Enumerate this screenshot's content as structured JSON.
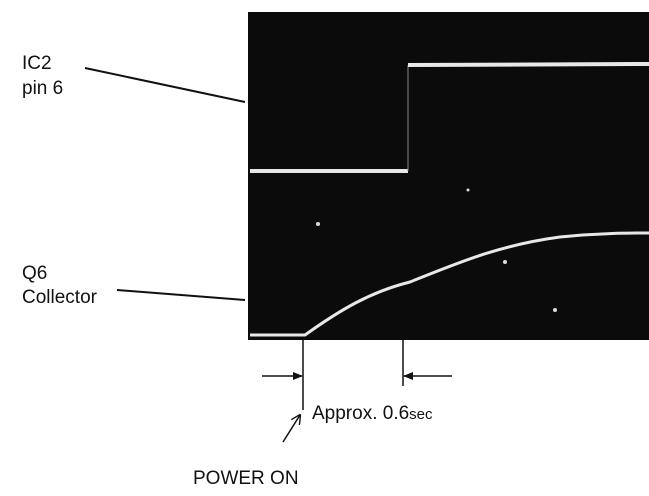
{
  "signals": [
    {
      "name": "IC2",
      "detail": "pin 6"
    },
    {
      "name": "Q6",
      "detail": "Collector"
    }
  ],
  "annotation": {
    "text": "Approx. 0.6",
    "unit": "sec"
  },
  "event": "POWER ON"
}
